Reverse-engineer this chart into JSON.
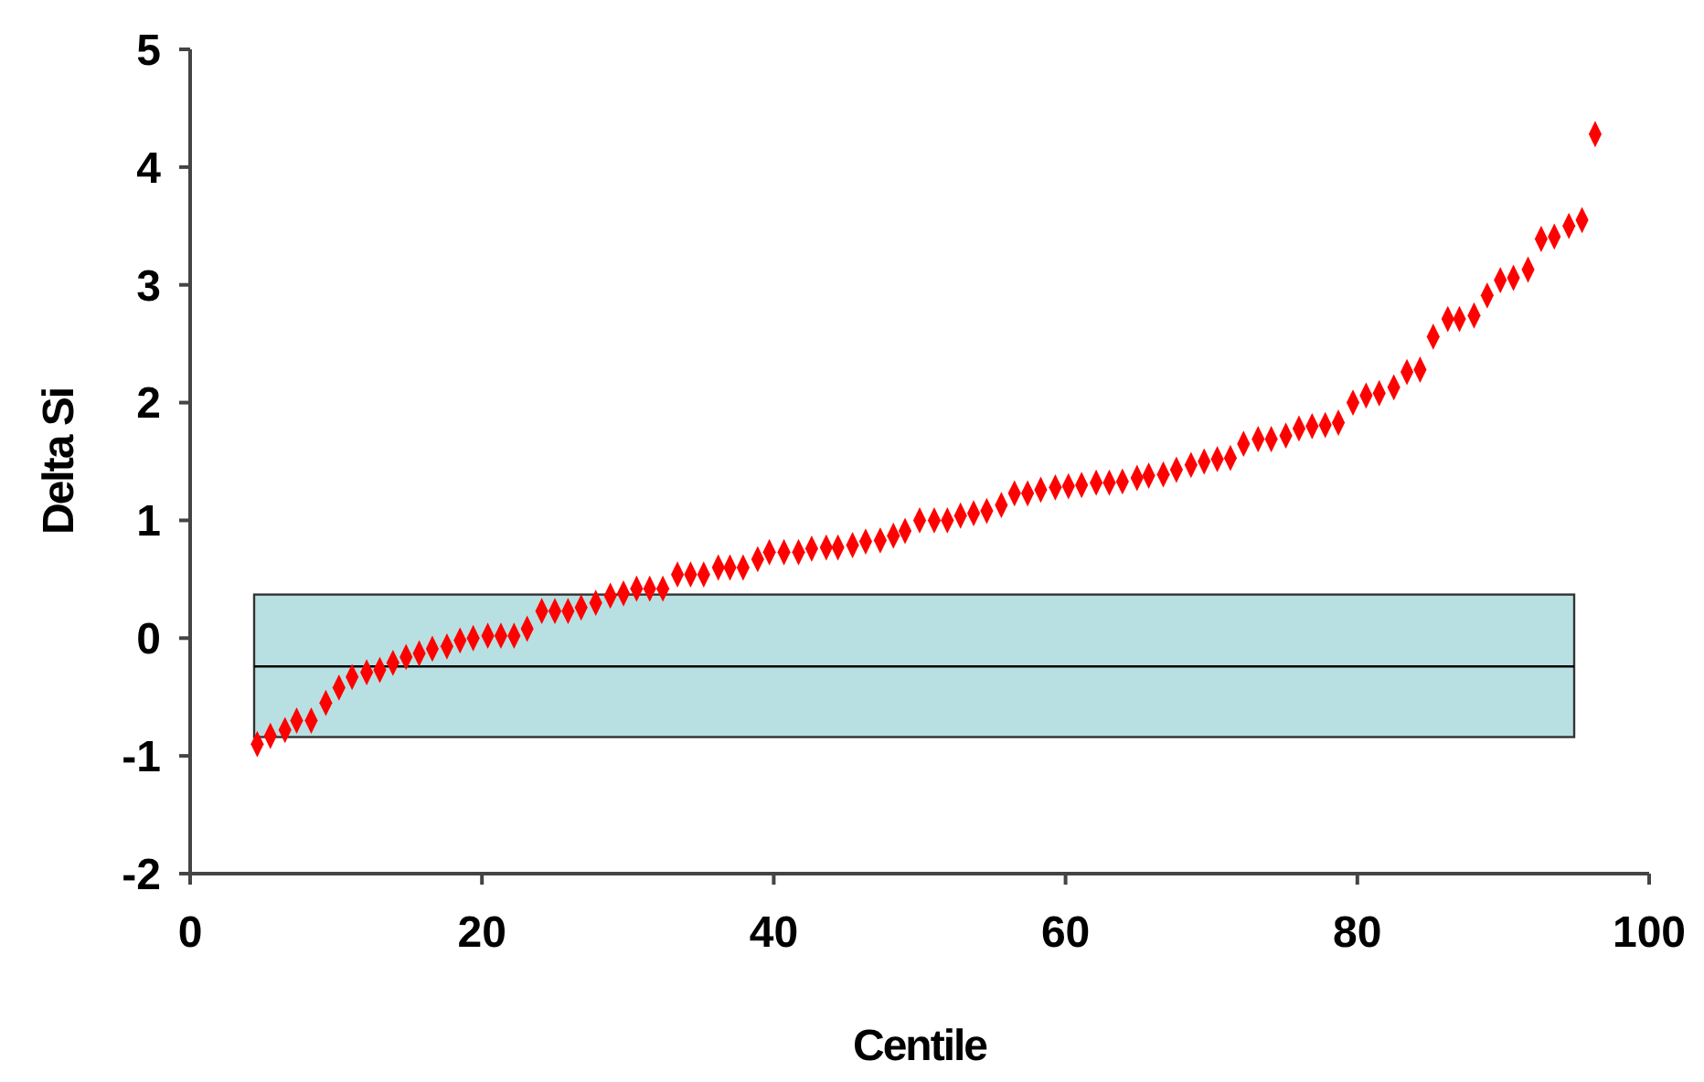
{
  "chart_data": {
    "type": "scatter",
    "xlabel": "Centile",
    "ylabel": "Delta Si",
    "xlim": [
      0,
      100
    ],
    "xticks": [
      0,
      20,
      40,
      60,
      80,
      100
    ],
    "ylim": [
      -2,
      5
    ],
    "yticks": [
      -2,
      -1,
      0,
      1,
      2,
      3,
      4,
      5
    ],
    "grid": false,
    "marker": "diamond",
    "bands": [
      {
        "axis": "y",
        "from": -0.84,
        "to": 0.37,
        "color": "#b8e0e2"
      }
    ],
    "ref_lines": [
      {
        "axis": "y",
        "value": -0.24,
        "color": "#000000",
        "line_style": "solid"
      }
    ],
    "series": [
      {
        "color": "#ff0000",
        "x": [
          4.6,
          5.5,
          6.5,
          7.3,
          8.3,
          9.3,
          10.2,
          11.1,
          12.1,
          13.0,
          13.9,
          14.8,
          15.7,
          16.6,
          17.6,
          18.5,
          19.4,
          20.4,
          21.3,
          22.2,
          23.1,
          24.1,
          25.0,
          25.9,
          26.8,
          27.8,
          28.8,
          29.7,
          30.6,
          31.5,
          32.4,
          33.4,
          34.3,
          35.2,
          36.2,
          37.0,
          37.9,
          38.9,
          39.7,
          40.7,
          41.7,
          42.6,
          43.6,
          44.4,
          45.4,
          46.3,
          47.3,
          48.2,
          49.0,
          50.0,
          51.0,
          51.9,
          52.8,
          53.7,
          54.6,
          55.6,
          56.5,
          57.4,
          58.3,
          59.3,
          60.2,
          61.1,
          62.1,
          63.0,
          63.9,
          64.9,
          65.7,
          66.7,
          67.6,
          68.6,
          69.5,
          70.4,
          71.3,
          72.2,
          73.2,
          74.1,
          75.1,
          76.0,
          76.9,
          77.8,
          78.7,
          79.7,
          80.6,
          81.5,
          82.5,
          83.4,
          84.3,
          85.2,
          86.2,
          87.0,
          88.0,
          88.9,
          89.8,
          90.7,
          91.7,
          92.6,
          93.5,
          94.5,
          95.4,
          96.3
        ],
        "values": [
          -0.9,
          -0.83,
          -0.78,
          -0.7,
          -0.7,
          -0.55,
          -0.42,
          -0.33,
          -0.29,
          -0.27,
          -0.21,
          -0.16,
          -0.13,
          -0.09,
          -0.07,
          -0.02,
          0.0,
          0.02,
          0.02,
          0.02,
          0.08,
          0.23,
          0.23,
          0.23,
          0.26,
          0.3,
          0.36,
          0.38,
          0.42,
          0.42,
          0.42,
          0.54,
          0.54,
          0.54,
          0.6,
          0.6,
          0.6,
          0.67,
          0.73,
          0.73,
          0.73,
          0.76,
          0.77,
          0.77,
          0.79,
          0.82,
          0.83,
          0.87,
          0.91,
          1.0,
          1.0,
          1.0,
          1.04,
          1.06,
          1.08,
          1.13,
          1.23,
          1.23,
          1.26,
          1.28,
          1.29,
          1.3,
          1.32,
          1.32,
          1.33,
          1.36,
          1.38,
          1.39,
          1.43,
          1.47,
          1.5,
          1.52,
          1.53,
          1.65,
          1.69,
          1.69,
          1.72,
          1.78,
          1.8,
          1.81,
          1.83,
          2.0,
          2.06,
          2.08,
          2.13,
          2.26,
          2.28,
          2.56,
          2.71,
          2.71,
          2.74,
          2.91,
          3.04,
          3.06,
          3.13,
          3.39,
          3.41,
          3.5,
          3.55,
          4.28
        ]
      }
    ]
  }
}
